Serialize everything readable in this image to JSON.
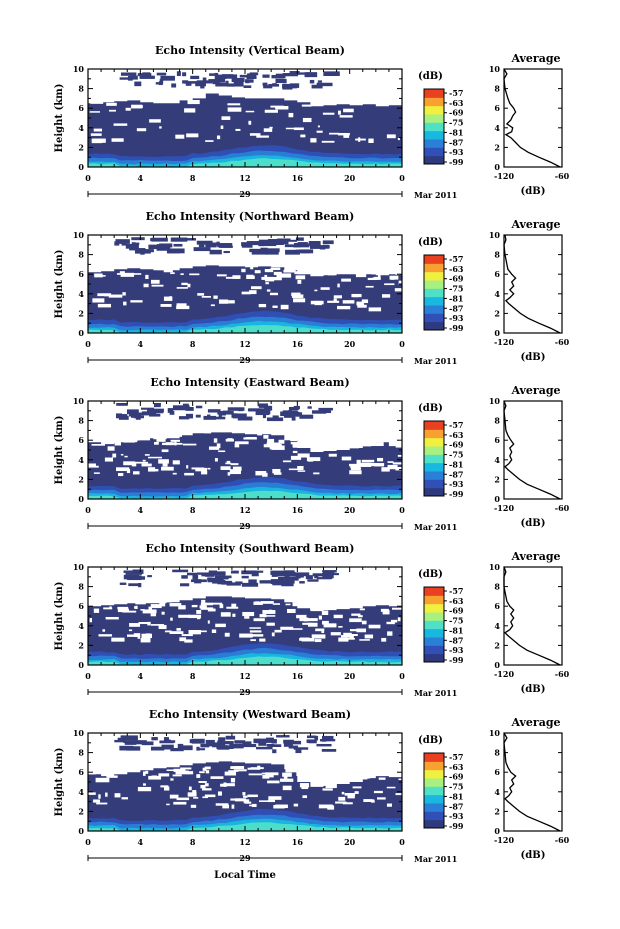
{
  "figure": {
    "xlabel_bottom": "Local Time",
    "date_label": "Mar 2011",
    "day_label": "29",
    "colorbar_unit": "(dB)",
    "colorbar_ticks": [
      "-57",
      "-63",
      "-69",
      "-75",
      "-81",
      "-87",
      "-93",
      "-99"
    ],
    "average_title": "Average",
    "average_xlabel": "(dB)",
    "height_label": "Height (km)"
  },
  "colors": {
    "background_echo": "#343c7a",
    "colormap": [
      "#2f3a7e",
      "#3050b8",
      "#2a7fd6",
      "#18b8e0",
      "#4fe0c8",
      "#a8f080",
      "#f0f040",
      "#f8a030",
      "#e84020"
    ]
  },
  "chart_data": [
    {
      "type": "heatmap",
      "title": "Echo Intensity (Vertical Beam)",
      "ylabel": "Height (km)",
      "xlim": [
        0,
        24
      ],
      "ylim": [
        0,
        10
      ],
      "xticks": [
        "0",
        "4",
        "8",
        "12",
        "16",
        "20",
        "0"
      ],
      "yticks": [
        "0",
        "2",
        "4",
        "6",
        "8",
        "10"
      ],
      "day": "29",
      "date": "Mar 2011",
      "colorbar": {
        "unit": "(dB)",
        "ticks": [
          "-57",
          "-63",
          "-69",
          "-75",
          "-81",
          "-87",
          "-93",
          "-99"
        ]
      },
      "echo_top_km_by_hour": [
        6.5,
        6.6,
        6.7,
        6.8,
        6.6,
        6.5,
        6.5,
        6.8,
        7.0,
        7.5,
        7.3,
        7.1,
        7.0,
        7.0,
        7.0,
        6.8,
        6.6,
        6.2,
        6.3,
        6.4,
        6.3,
        6.4,
        6.2,
        6.3
      ],
      "average_profile": {
        "title": "Average",
        "xlabel": "(dB)",
        "xlim": [
          -120,
          -60
        ],
        "xticks": [
          "-120",
          "-60"
        ],
        "yticks": [
          "0",
          "2",
          "4",
          "6",
          "8",
          "10"
        ],
        "height_km": [
          0.0,
          0.5,
          1.0,
          1.5,
          2.0,
          2.5,
          3.0,
          3.3,
          3.6,
          4.0,
          4.4,
          4.8,
          5.2,
          5.6,
          6.0,
          6.5,
          7.0,
          8.0,
          9.0,
          9.5,
          10.0
        ],
        "db": [
          -62,
          -72,
          -84,
          -95,
          -103,
          -108,
          -113,
          -118,
          -112,
          -111,
          -117,
          -113,
          -111,
          -108,
          -110,
          -114,
          -116,
          -119,
          -120,
          -117,
          -120
        ]
      }
    },
    {
      "type": "heatmap",
      "title": "Echo Intensity (Northward Beam)",
      "ylabel": "Height (km)",
      "xlim": [
        0,
        24
      ],
      "ylim": [
        0,
        10
      ],
      "xticks": [
        "0",
        "4",
        "8",
        "12",
        "16",
        "20",
        "0"
      ],
      "yticks": [
        "0",
        "2",
        "4",
        "6",
        "8",
        "10"
      ],
      "day": "29",
      "date": "Mar 2011",
      "colorbar": {
        "unit": "(dB)",
        "ticks": [
          "-57",
          "-63",
          "-69",
          "-75",
          "-81",
          "-87",
          "-93",
          "-99"
        ]
      },
      "echo_top_km_by_hour": [
        6.2,
        6.3,
        6.5,
        6.6,
        6.5,
        6.4,
        6.4,
        6.6,
        6.8,
        6.9,
        6.8,
        6.8,
        6.7,
        6.8,
        6.7,
        6.4,
        6.0,
        5.8,
        5.9,
        6.0,
        6.0,
        6.0,
        5.9,
        6.0
      ],
      "average_profile": {
        "title": "Average",
        "xlabel": "(dB)",
        "xlim": [
          -120,
          -60
        ],
        "xticks": [
          "-120",
          "-60"
        ],
        "yticks": [
          "0",
          "2",
          "4",
          "6",
          "8",
          "10"
        ],
        "height_km": [
          0.0,
          0.5,
          1.0,
          1.5,
          2.0,
          2.5,
          3.0,
          3.3,
          3.6,
          4.0,
          4.4,
          4.8,
          5.2,
          5.6,
          6.0,
          6.5,
          7.0,
          8.0,
          9.0,
          9.5,
          10.0
        ],
        "db": [
          -62,
          -72,
          -84,
          -95,
          -103,
          -109,
          -115,
          -118,
          -114,
          -110,
          -114,
          -110,
          -112,
          -108,
          -112,
          -116,
          -117,
          -119,
          -120,
          -118,
          -119
        ]
      }
    },
    {
      "type": "heatmap",
      "title": "Echo Intensity (Eastward Beam)",
      "ylabel": "Height (km)",
      "xlim": [
        0,
        24
      ],
      "ylim": [
        0,
        10
      ],
      "xticks": [
        "0",
        "4",
        "8",
        "12",
        "16",
        "20",
        "0"
      ],
      "yticks": [
        "0",
        "2",
        "4",
        "6",
        "8",
        "10"
      ],
      "day": "29",
      "date": "Mar 2011",
      "colorbar": {
        "unit": "(dB)",
        "ticks": [
          "-57",
          "-63",
          "-69",
          "-75",
          "-81",
          "-87",
          "-93",
          "-99"
        ]
      },
      "echo_top_km_by_hour": [
        5.8,
        5.6,
        5.8,
        6.0,
        6.2,
        6.1,
        6.2,
        6.5,
        6.7,
        6.8,
        6.8,
        6.7,
        6.6,
        6.6,
        6.5,
        6.0,
        5.2,
        4.8,
        4.9,
        5.0,
        5.2,
        5.6,
        5.8,
        5.4
      ],
      "average_profile": {
        "title": "Average",
        "xlabel": "(dB)",
        "xlim": [
          -120,
          -60
        ],
        "xticks": [
          "-120",
          "-60"
        ],
        "yticks": [
          "0",
          "2",
          "4",
          "6",
          "8",
          "10"
        ],
        "height_km": [
          0.0,
          0.5,
          1.0,
          1.5,
          2.0,
          2.5,
          3.0,
          3.3,
          3.6,
          4.0,
          4.4,
          4.8,
          5.2,
          5.6,
          6.0,
          6.5,
          7.0,
          8.0,
          9.0,
          9.5,
          10.0
        ],
        "db": [
          -62,
          -72,
          -84,
          -96,
          -104,
          -110,
          -116,
          -119,
          -115,
          -112,
          -114,
          -112,
          -114,
          -110,
          -113,
          -116,
          -118,
          -119,
          -120,
          -118,
          -120
        ]
      }
    },
    {
      "type": "heatmap",
      "title": "Echo Intensity (Southward Beam)",
      "ylabel": "Height (km)",
      "xlim": [
        0,
        24
      ],
      "ylim": [
        0,
        10
      ],
      "xticks": [
        "0",
        "4",
        "8",
        "12",
        "16",
        "20",
        "0"
      ],
      "yticks": [
        "0",
        "2",
        "4",
        "6",
        "8",
        "10"
      ],
      "day": "29",
      "date": "Mar 2011",
      "colorbar": {
        "unit": "(dB)",
        "ticks": [
          "-57",
          "-63",
          "-69",
          "-75",
          "-81",
          "-87",
          "-93",
          "-99"
        ]
      },
      "echo_top_km_by_hour": [
        6.0,
        6.1,
        6.2,
        6.3,
        6.3,
        6.3,
        6.4,
        6.6,
        6.8,
        7.0,
        7.0,
        6.9,
        6.8,
        6.8,
        6.7,
        6.4,
        5.8,
        5.5,
        5.6,
        5.7,
        5.8,
        6.0,
        6.1,
        6.0
      ],
      "average_profile": {
        "title": "Average",
        "xlabel": "(dB)",
        "xlim": [
          -120,
          -60
        ],
        "xticks": [
          "-120",
          "-60"
        ],
        "yticks": [
          "0",
          "2",
          "4",
          "6",
          "8",
          "10"
        ],
        "height_km": [
          0.0,
          0.5,
          1.0,
          1.5,
          2.0,
          2.5,
          3.0,
          3.3,
          3.6,
          4.0,
          4.4,
          4.8,
          5.2,
          5.6,
          6.0,
          6.5,
          7.0,
          8.0,
          9.0,
          9.5,
          10.0
        ],
        "db": [
          -62,
          -72,
          -84,
          -96,
          -104,
          -110,
          -116,
          -119,
          -114,
          -111,
          -113,
          -110,
          -113,
          -110,
          -114,
          -117,
          -118,
          -120,
          -120,
          -118,
          -120
        ]
      }
    },
    {
      "type": "heatmap",
      "title": "Echo Intensity (Westward Beam)",
      "ylabel": "Height (km)",
      "xlabel": "Local Time",
      "xlim": [
        0,
        24
      ],
      "ylim": [
        0,
        10
      ],
      "xticks": [
        "0",
        "4",
        "8",
        "12",
        "16",
        "20",
        "0"
      ],
      "yticks": [
        "0",
        "2",
        "4",
        "6",
        "8",
        "10"
      ],
      "day": "29",
      "date": "Mar 2011",
      "colorbar": {
        "unit": "(dB)",
        "ticks": [
          "-57",
          "-63",
          "-69",
          "-75",
          "-81",
          "-87",
          "-93",
          "-99"
        ]
      },
      "echo_top_km_by_hour": [
        5.8,
        5.6,
        5.8,
        6.0,
        6.2,
        6.4,
        6.5,
        6.7,
        6.9,
        7.0,
        7.1,
        7.0,
        6.9,
        6.9,
        6.8,
        6.3,
        5.0,
        4.5,
        4.6,
        4.8,
        5.0,
        5.4,
        5.6,
        5.5
      ],
      "average_profile": {
        "title": "Average",
        "xlabel": "(dB)",
        "xlim": [
          -120,
          -60
        ],
        "xticks": [
          "-120",
          "-60"
        ],
        "yticks": [
          "0",
          "2",
          "4",
          "6",
          "8",
          "10"
        ],
        "height_km": [
          0.0,
          0.5,
          1.0,
          1.5,
          2.0,
          2.5,
          3.0,
          3.3,
          3.6,
          4.0,
          4.4,
          4.8,
          5.2,
          5.6,
          6.0,
          6.5,
          7.0,
          8.0,
          9.0,
          9.5,
          10.0
        ],
        "db": [
          -62,
          -72,
          -84,
          -96,
          -104,
          -110,
          -116,
          -119,
          -115,
          -112,
          -114,
          -110,
          -112,
          -108,
          -113,
          -116,
          -118,
          -119,
          -120,
          -117,
          -120
        ]
      }
    }
  ]
}
